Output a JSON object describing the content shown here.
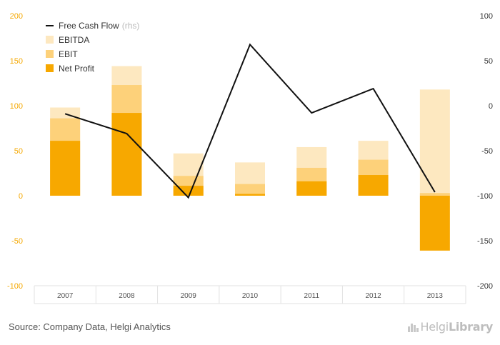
{
  "source": "Source: Company Data, Helgi Analytics",
  "logo": {
    "part1": "Helgi",
    "part2": "Library",
    "icon": "building-icon"
  },
  "colors": {
    "net_profit": "#f7a800",
    "ebit": "#fdd17a",
    "ebitda": "#fde8c0",
    "fcf": "#111111"
  },
  "chart_data": {
    "type": "bar",
    "categories": [
      "2007",
      "2008",
      "2009",
      "2010",
      "2011",
      "2012",
      "2013"
    ],
    "y_left": {
      "ticks": [
        -100,
        -50,
        0,
        50,
        100,
        150,
        200
      ],
      "range": [
        -100,
        200
      ]
    },
    "y_right": {
      "ticks": [
        -200,
        -150,
        -100,
        -50,
        0,
        50,
        100
      ],
      "range": [
        -200,
        100
      ]
    },
    "legend": [
      {
        "key": "fcf",
        "label": "Free Cash Flow",
        "note": "(rhs)"
      },
      {
        "key": "ebitda",
        "label": "EBITDA",
        "note": ""
      },
      {
        "key": "ebit",
        "label": "EBIT",
        "note": ""
      },
      {
        "key": "net_profit",
        "label": "Net Profit",
        "note": ""
      }
    ],
    "series": [
      {
        "key": "ebitda",
        "name": "EBITDA",
        "values": [
          98,
          144,
          47,
          37,
          54,
          61,
          118
        ]
      },
      {
        "key": "ebit",
        "name": "EBIT",
        "values": [
          86,
          123,
          22,
          13,
          31,
          40,
          3
        ]
      },
      {
        "key": "net_profit",
        "name": "Net Profit",
        "values": [
          61,
          92,
          11,
          2,
          16,
          23,
          -61
        ]
      },
      {
        "key": "fcf",
        "name": "Free Cash Flow",
        "axis": "right",
        "values": [
          -9,
          -31,
          -102,
          68,
          -8,
          19,
          -96
        ]
      }
    ],
    "legend_position": "top-left",
    "grid": false
  }
}
